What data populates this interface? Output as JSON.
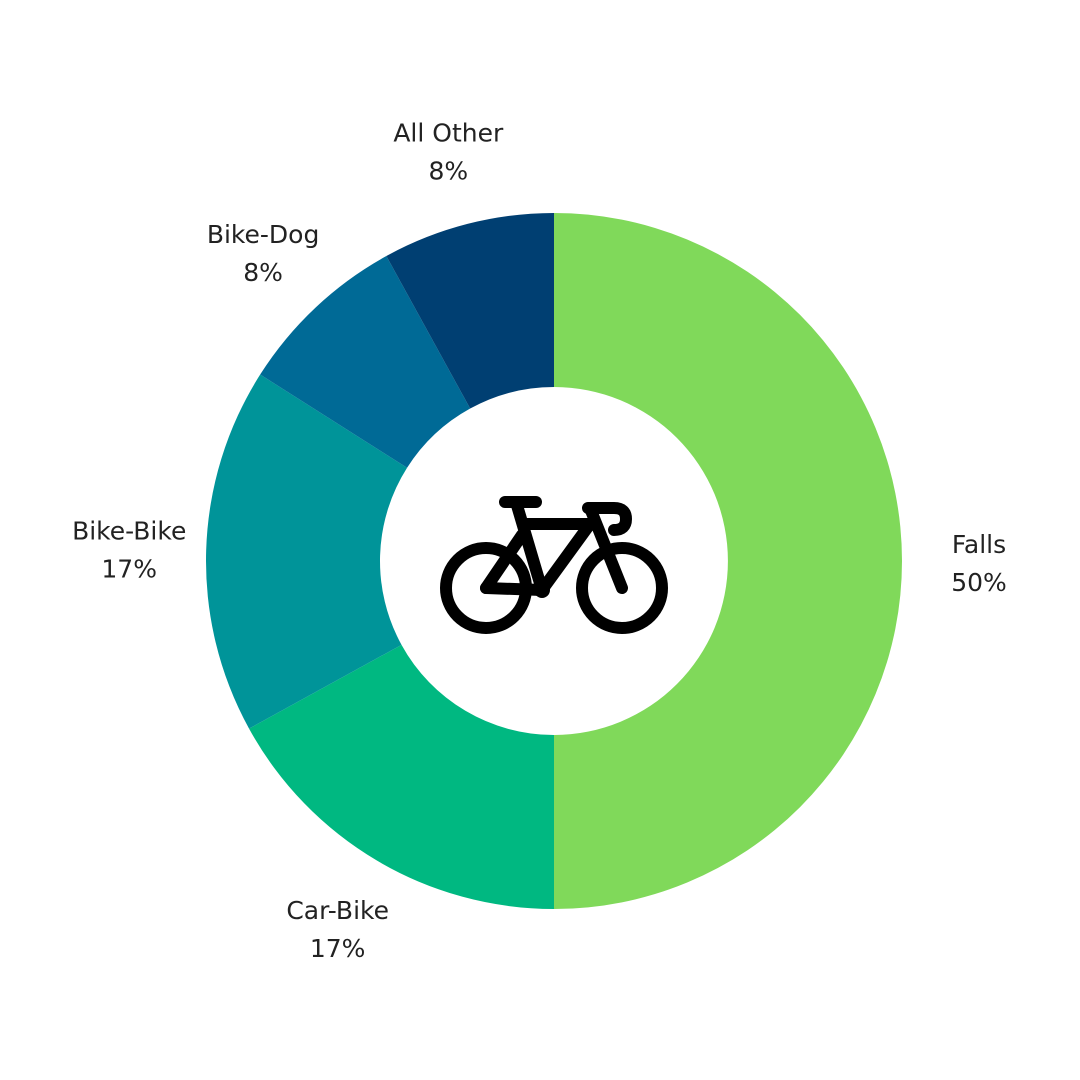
{
  "chart_data": {
    "type": "pie",
    "style": "donut",
    "categories": [
      "Falls",
      "Car-Bike",
      "Bike-Bike",
      "Bike-Dog",
      "All Other"
    ],
    "values": [
      50,
      17,
      17,
      8,
      8
    ],
    "value_labels": [
      "50%",
      "17%",
      "17%",
      "8%",
      "8%"
    ],
    "colors": [
      "#80d95a",
      "#00b881",
      "#009499",
      "#006a96",
      "#003f72"
    ],
    "center_icon": "bicycle-icon",
    "legend": "none"
  }
}
